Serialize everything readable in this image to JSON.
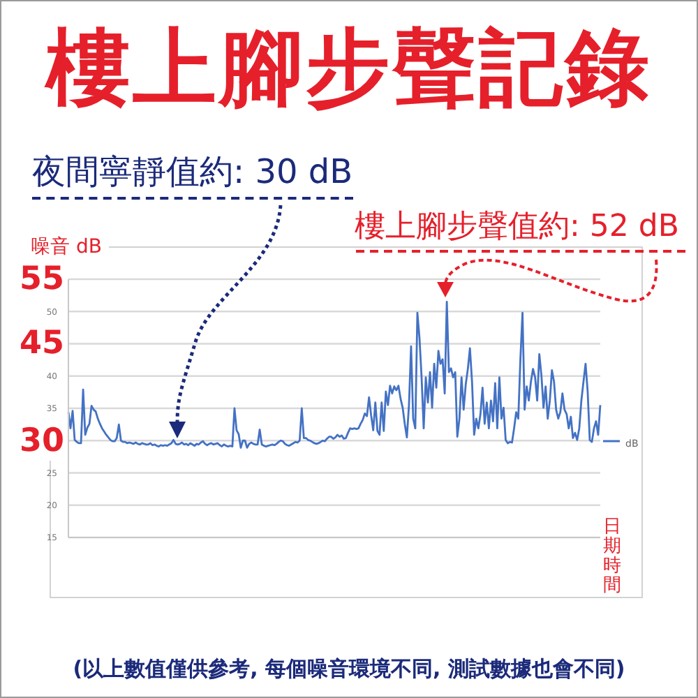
{
  "chart_data": {
    "type": "line",
    "title": "樓上腳步聲記錄",
    "xlabel": "日期時間",
    "ylabel": "噪音 dB",
    "categories": [
      null,
      null,
      null,
      null,
      null,
      null,
      null,
      null,
      null,
      null,
      null,
      null,
      null,
      null,
      null,
      null,
      null,
      null,
      null,
      null,
      null,
      null,
      null,
      null,
      null,
      null,
      null,
      null,
      null,
      null,
      null,
      null,
      null,
      null,
      null,
      null,
      null,
      null,
      null,
      null,
      null,
      null,
      null,
      null,
      null,
      null,
      null,
      null,
      null,
      null,
      null,
      null,
      null,
      null,
      null,
      null,
      null,
      null,
      null,
      null,
      null,
      null,
      null,
      null,
      null,
      null,
      null,
      null,
      null,
      null,
      null,
      null,
      null,
      null,
      null,
      null,
      null,
      null,
      null,
      null,
      null,
      null,
      null,
      null,
      null,
      null,
      null,
      null,
      null,
      null,
      null,
      null,
      null,
      null,
      null,
      null,
      null,
      null,
      null,
      null,
      null,
      null,
      null,
      null,
      null,
      null,
      null,
      null,
      null,
      null,
      null,
      null,
      null,
      null,
      null,
      null,
      null,
      null,
      null,
      null,
      null,
      null,
      null,
      null,
      null,
      null,
      null,
      null,
      null,
      null,
      null,
      null,
      null,
      null,
      null,
      null,
      null,
      null,
      null,
      null,
      null,
      null,
      null,
      null,
      null,
      null,
      null,
      null,
      null,
      null,
      null,
      null,
      null,
      null,
      null,
      null,
      null,
      null,
      null,
      null,
      null,
      null,
      null,
      null,
      null,
      null,
      null,
      null,
      null,
      null,
      null,
      null,
      null,
      null,
      null,
      null,
      null,
      null,
      null,
      null,
      null,
      null,
      null,
      null,
      null,
      null,
      null,
      null,
      null,
      null,
      null,
      null,
      null,
      null,
      null,
      null,
      null,
      null,
      null,
      null,
      null,
      null,
      null,
      null,
      null,
      null,
      null,
      null,
      null,
      null,
      null,
      null,
      null,
      null,
      null,
      null,
      null,
      null,
      null,
      null,
      null,
      null,
      null,
      null,
      null,
      null,
      null,
      null,
      null,
      null,
      null,
      null,
      null,
      null,
      null,
      null,
      null,
      null,
      null,
      null,
      null,
      null,
      null,
      null,
      null,
      null,
      null,
      null,
      null,
      null,
      null,
      null,
      null,
      null
    ],
    "series": [
      {
        "name": "dB",
        "color": "#4472c4",
        "values": [
          34.4,
          31.9,
          34.6,
          30.1,
          29.8,
          29.6,
          29.6,
          37.9,
          30.9,
          32.0,
          32.6,
          35.4,
          34.8,
          34.5,
          33.4,
          32.6,
          31.9,
          31.4,
          30.9,
          30.5,
          30.1,
          29.9,
          29.9,
          30.4,
          32.5,
          30.0,
          29.8,
          29.8,
          29.6,
          29.7,
          29.6,
          29.5,
          29.7,
          29.5,
          29.4,
          29.6,
          29.5,
          29.4,
          29.4,
          29.6,
          29.3,
          29.4,
          29.2,
          29.1,
          29.3,
          29.2,
          29.3,
          29.2,
          29.4,
          29.6,
          30.1,
          29.5,
          29.4,
          29.5,
          29.7,
          29.4,
          29.5,
          29.3,
          29.6,
          29.4,
          29.2,
          29.5,
          29.4,
          29.7,
          29.9,
          29.5,
          29.3,
          29.5,
          29.6,
          29.4,
          29.5,
          29.6,
          29.3,
          29.1,
          29.4,
          29.2,
          29.1,
          29.2,
          29.1,
          35.0,
          31.6,
          31.0,
          28.9,
          30.0,
          30.0,
          28.9,
          29.5,
          29.7,
          29.5,
          29.4,
          29.4,
          31.7,
          29.4,
          29.2,
          29.1,
          29.2,
          29.3,
          29.4,
          29.3,
          29.5,
          29.8,
          30.0,
          29.9,
          29.5,
          29.3,
          29.2,
          29.4,
          29.6,
          29.8,
          29.7,
          30.0,
          35.0,
          30.4,
          30.4,
          30.1,
          30.0,
          29.8,
          29.6,
          29.5,
          29.6,
          29.8,
          30.0,
          29.9,
          30.3,
          30.6,
          30.6,
          30.3,
          30.5,
          30.9,
          30.6,
          30.8,
          30.3,
          30.4,
          31.2,
          31.9,
          31.8,
          31.9,
          31.8,
          31.9,
          32.6,
          33.2,
          34.2,
          33.8,
          36.7,
          33.9,
          31.6,
          35.9,
          31.5,
          30.9,
          35.9,
          31.5,
          37.6,
          35.5,
          38.5,
          37.3,
          38.4,
          37.8,
          38.5,
          36.5,
          35.1,
          32.6,
          30.5,
          35.5,
          44.6,
          33.4,
          31.9,
          49.8,
          45.9,
          39.8,
          31.9,
          39.8,
          35.9,
          40.6,
          35.1,
          41.9,
          38.2,
          43.9,
          41.9,
          42.6,
          37.3,
          51.5,
          40.6,
          41.2,
          39.8,
          40.6,
          30.6,
          33.4,
          39.8,
          34.8,
          38.7,
          41.1,
          44.3,
          39.1,
          30.9,
          33.4,
          31.9,
          34.1,
          38.2,
          32.6,
          35.9,
          31.9,
          36.2,
          33.0,
          38.9,
          31.9,
          39.8,
          33.4,
          35.1,
          30.1,
          29.6,
          29.8,
          29.7,
          31.9,
          34.4,
          33.4,
          42.6,
          49.8,
          34.8,
          38.4,
          36.2,
          39.1,
          41.1,
          39.8,
          36.2,
          43.4,
          40.1,
          35.1,
          38.4,
          33.4,
          36.2,
          40.9,
          39.1,
          34.8,
          33.4,
          34.4,
          37.3,
          34.8,
          34.1,
          31.9,
          33.7,
          30.4,
          31.2,
          30.1,
          31.9,
          36.2,
          39.1,
          41.9,
          37.6,
          30.1,
          29.8,
          31.9,
          33.0,
          30.9,
          35.5
        ]
      }
    ],
    "ylim": [
      15,
      55
    ],
    "yticks": [
      15,
      20,
      25,
      {
        "value": 30,
        "label": null
      },
      35,
      40,
      {
        "value": 45,
        "label": null
      },
      50,
      {
        "value": 55,
        "label": null
      }
    ],
    "grid": "y",
    "legend": "right",
    "marker": "none",
    "annotations": [
      "夜間寧靜值約: 30 dB",
      "樓上腳步聲值約: 52 dB",
      "55",
      "45",
      "30",
      "(以上數值僅供參考, 每個噪音環境不同, 測試數據也會不同)"
    ]
  }
}
